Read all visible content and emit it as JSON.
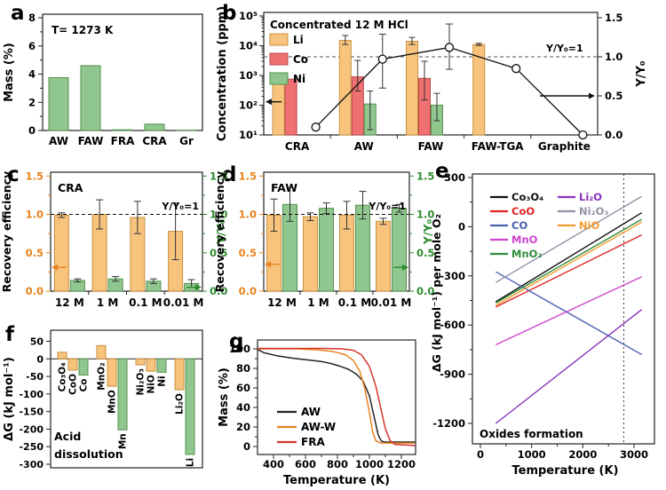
{
  "chart_data": [
    {
      "panel": "a",
      "type": "bar",
      "annotation": "T= 1273 K",
      "ylabel": "Mass (%)",
      "ylim": [
        0,
        8
      ],
      "yticks": [
        0,
        2,
        4,
        6,
        8
      ],
      "categories": [
        "AW",
        "FAW",
        "FRA",
        "CRA",
        "Gr"
      ],
      "values": [
        3.75,
        4.6,
        0.05,
        0.45,
        0.02
      ],
      "bar_fill": "#8FC78F",
      "bar_stroke": "#55904F"
    },
    {
      "panel": "b",
      "type": "grouped-bar-log-with-line",
      "legend_title": "Concentrated 12 M HCl",
      "ylabel": "Concentration (ppm)",
      "ylabel_right": "Y/Y₀",
      "ylog_labels": [
        "10¹",
        "10²",
        "10³",
        "10⁴",
        "10⁵"
      ],
      "ylim_right": [
        0,
        1.5
      ],
      "yticks_right": [
        "0.0",
        "0.5",
        "1.0",
        "1.5"
      ],
      "dashed_value_right": 1.0,
      "dashed_label": "Y/Y₀=1",
      "categories": [
        "CRA",
        "AW",
        "FAW",
        "FAW-TGA",
        "Graphite"
      ],
      "series": [
        {
          "name": "Li",
          "fill": "#F7C37D",
          "stroke": "#C8913F",
          "values": [
            1200,
            15000,
            14000,
            11000,
            null
          ],
          "err_lo": [
            null,
            11000,
            11000,
            10200,
            null
          ],
          "err_hi": [
            null,
            22000,
            19000,
            12000,
            null
          ]
        },
        {
          "name": "Co",
          "fill": "#EE7070",
          "stroke": "#BC4747",
          "values": [
            750,
            900,
            800,
            null,
            null
          ],
          "err_lo": [
            null,
            300,
            150,
            null,
            null
          ],
          "err_hi": [
            null,
            3200,
            3000,
            null,
            null
          ]
        },
        {
          "name": "Ni",
          "fill": "#8FC78F",
          "stroke": "#55904F",
          "values": [
            null,
            110,
            100,
            null,
            null
          ],
          "err_lo": [
            null,
            15,
            30,
            null,
            null
          ],
          "err_hi": [
            null,
            300,
            250,
            null,
            null
          ]
        }
      ],
      "line": {
        "name": "Y/Y₀",
        "values": [
          0.1,
          0.97,
          1.12,
          0.85,
          0.0
        ],
        "err_lo": [
          null,
          0.6,
          0.84,
          null,
          null
        ],
        "err_hi": [
          null,
          1.29,
          1.42,
          null,
          null
        ]
      },
      "arrow_left_at_ppm": 130,
      "arrow_right_at": 0.5
    },
    {
      "panel": "c",
      "type": "dual-axis-bar",
      "annotation": "CRA",
      "ylabel_left": "Recovery efficiency",
      "ylabel_right": "Y/Y₀",
      "dashed_label": "Y/Y₀=1",
      "dashed_value": 1.0,
      "ylim": [
        0,
        1.5
      ],
      "yticks": [
        "0.0",
        "0.5",
        "1.0",
        "1.5"
      ],
      "categories": [
        "12 M",
        "1 M",
        "0.1 M",
        "0.01 M"
      ],
      "left": {
        "values": [
          0.99,
          1.0,
          0.96,
          0.78
        ],
        "err": [
          0.03,
          0.19,
          0.21,
          0.37
        ],
        "fill": "#F7C37D",
        "stroke": "#C8913F"
      },
      "right": {
        "values": [
          0.14,
          0.16,
          0.13,
          0.1
        ],
        "err": [
          0.02,
          0.03,
          0.03,
          0.05
        ],
        "fill": "#8FC78F",
        "stroke": "#55904F"
      },
      "axis_left_color": "#E8821E",
      "axis_right_color": "#2E8B2E",
      "arrow_left_at": 0.31,
      "arrow_right_at": 0.05
    },
    {
      "panel": "d",
      "type": "dual-axis-bar",
      "annotation": "FAW",
      "ylabel_left": "Recovery efficiency",
      "ylabel_right": "Y/Y₀",
      "dashed_label": "Y/Y₀=1",
      "dashed_value": 1.0,
      "ylim": [
        0,
        1.5
      ],
      "yticks": [
        "0.0",
        "0.5",
        "1.0",
        "1.5"
      ],
      "categories": [
        "12 M",
        "1 M",
        "0.1 M",
        "0.01 M"
      ],
      "left": {
        "values": [
          0.99,
          0.97,
          0.99,
          0.91
        ],
        "err": [
          0.21,
          0.05,
          0.18,
          0.04
        ],
        "fill": "#F7C37D",
        "stroke": "#C8913F"
      },
      "right": {
        "values": [
          1.13,
          1.08,
          1.12,
          1.08
        ],
        "err": [
          0.22,
          0.07,
          0.18,
          0.05
        ],
        "fill": "#8FC78F",
        "stroke": "#55904F"
      },
      "axis_left_color": "#E8821E",
      "axis_right_color": "#2E8B2E",
      "arrow_left_at": 0.35,
      "arrow_right_at": 0.31
    },
    {
      "panel": "e",
      "type": "line",
      "xlabel": "Temperature (K)",
      "ylabel": "ΔG (kJ mol⁻¹) per mole O₂",
      "annotation": "Oxides formation",
      "xlim": [
        0,
        3400
      ],
      "ylim": [
        -1325,
        322
      ],
      "xticks": [
        0,
        1000,
        2000,
        3000
      ],
      "yticks": [
        300,
        0,
        -300,
        -600,
        -900,
        -1200
      ],
      "vline_dashed": 2800,
      "legend_split": 5,
      "series": [
        {
          "name": "Co₃O₄",
          "color": "#111111",
          "points": [
            [
              300,
              -458
            ],
            [
              3150,
              85
            ]
          ]
        },
        {
          "name": "CoO",
          "color": "#E02222",
          "points": [
            [
              300,
              -490
            ],
            [
              3150,
              -50
            ]
          ]
        },
        {
          "name": "CO",
          "color": "#4A5FB0",
          "points": [
            [
              300,
              -275
            ],
            [
              3150,
              -780
            ]
          ]
        },
        {
          "name": "MnO",
          "color": "#CC44CC",
          "points": [
            [
              300,
              -720
            ],
            [
              3150,
              -305
            ]
          ]
        },
        {
          "name": "MnO₂",
          "color": "#2E8B3A",
          "points": [
            [
              300,
              -465
            ],
            [
              3150,
              45
            ]
          ]
        },
        {
          "name": "Li₂O",
          "color": "#8833BB",
          "points": [
            [
              300,
              -1200
            ],
            [
              3150,
              -505
            ]
          ]
        },
        {
          "name": "Ni₂O₃",
          "color": "#9292A8",
          "points": [
            [
              300,
              -340
            ],
            [
              3150,
              185
            ]
          ]
        },
        {
          "name": "NiO",
          "color": "#F59B2D",
          "points": [
            [
              300,
              -480
            ],
            [
              3150,
              28
            ]
          ]
        }
      ]
    },
    {
      "panel": "f",
      "type": "signed-bar",
      "ylabel": "ΔG (kJ mol⁻¹)",
      "annotation_lines": [
        "Acid",
        "dissolution"
      ],
      "ylim": [
        -300,
        50
      ],
      "yticks": [
        50,
        0,
        -50,
        -100,
        -150,
        -200,
        -250,
        -300
      ],
      "colors": {
        "orange_fill": "#F7C37D",
        "orange_stroke": "#C8913F",
        "green_fill": "#8FC78F",
        "green_stroke": "#55904F"
      },
      "bars": [
        {
          "label": "Co₃O₄",
          "value": 19,
          "color": "orange"
        },
        {
          "label": "CoO",
          "value": -32,
          "color": "orange"
        },
        {
          "label": "Co",
          "value": -46,
          "color": "green"
        },
        {
          "label": "MnO₂",
          "value": 38,
          "color": "orange",
          "gap_before": true
        },
        {
          "label": "MnO",
          "value": -78,
          "color": "orange"
        },
        {
          "label": "Mn",
          "value": -202,
          "color": "green"
        },
        {
          "label": "Ni₂O₃",
          "value": -17,
          "color": "orange",
          "gap_before": true
        },
        {
          "label": "NiO",
          "value": -35,
          "color": "orange"
        },
        {
          "label": "Ni",
          "value": -38,
          "color": "green"
        },
        {
          "label": "Li₂O",
          "value": -88,
          "color": "orange",
          "gap_before": true
        },
        {
          "label": "Li",
          "value": -272,
          "color": "green"
        }
      ]
    },
    {
      "panel": "g",
      "type": "line",
      "xlabel": "Temperature (K)",
      "ylabel": "Mass (%)",
      "xlim": [
        300,
        1290
      ],
      "ylim": [
        -8,
        109
      ],
      "xticks": [
        400,
        600,
        800,
        1000,
        1200
      ],
      "yticks": [
        0,
        20,
        40,
        60,
        80,
        100
      ],
      "series": [
        {
          "name": "AW",
          "color": "#222222",
          "points": [
            [
              300,
              99.5
            ],
            [
              340,
              96
            ],
            [
              420,
              93
            ],
            [
              520,
              90.5
            ],
            [
              620,
              88.5
            ],
            [
              700,
              87
            ],
            [
              760,
              85
            ],
            [
              820,
              82
            ],
            [
              870,
              79
            ],
            [
              920,
              74
            ],
            [
              960,
              67
            ],
            [
              1000,
              52
            ],
            [
              1030,
              30
            ],
            [
              1055,
              12
            ],
            [
              1075,
              5.5
            ],
            [
              1100,
              4.5
            ],
            [
              1285,
              4.5
            ]
          ]
        },
        {
          "name": "AW-W",
          "color": "#E8821E",
          "points": [
            [
              300,
              100
            ],
            [
              550,
              100
            ],
            [
              680,
              99
            ],
            [
              780,
              97
            ],
            [
              850,
              94
            ],
            [
              900,
              88
            ],
            [
              940,
              77
            ],
            [
              970,
              60
            ],
            [
              1000,
              35
            ],
            [
              1020,
              15
            ],
            [
              1040,
              6
            ],
            [
              1070,
              3.5
            ],
            [
              1285,
              3.5
            ]
          ]
        },
        {
          "name": "FRA",
          "color": "#D8342C",
          "points": [
            [
              300,
              100.5
            ],
            [
              700,
              100.5
            ],
            [
              830,
              100
            ],
            [
              900,
              98.5
            ],
            [
              950,
              94
            ],
            [
              1000,
              82
            ],
            [
              1040,
              62
            ],
            [
              1070,
              40
            ],
            [
              1100,
              18
            ],
            [
              1130,
              6
            ],
            [
              1160,
              2
            ],
            [
              1285,
              1
            ]
          ]
        }
      ]
    }
  ]
}
